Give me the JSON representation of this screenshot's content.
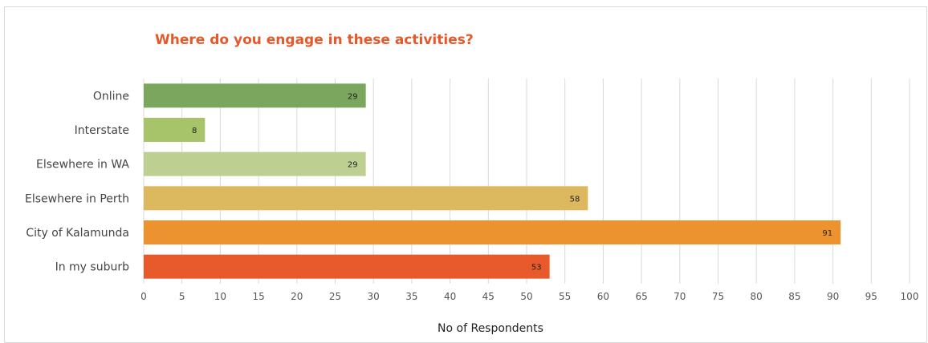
{
  "chart_data": {
    "type": "bar",
    "orientation": "horizontal",
    "title": "Where do you engage in these activities?",
    "xlabel": "No of Respondents",
    "ylabel": "",
    "xlim": [
      0,
      100
    ],
    "x_ticks": [
      0,
      5,
      10,
      15,
      20,
      25,
      30,
      35,
      40,
      45,
      50,
      55,
      60,
      65,
      70,
      75,
      80,
      85,
      90,
      95,
      100
    ],
    "grid": true,
    "legend": "none",
    "categories": [
      "Online",
      "Interstate",
      "Elsewhere in WA",
      "Elsewhere in Perth",
      "City of Kalamunda",
      "In my suburb"
    ],
    "values": [
      29,
      8,
      29,
      58,
      91,
      53
    ],
    "colors": [
      "#7ba65e",
      "#a7c46b",
      "#bdd092",
      "#dcb95e",
      "#ec922f",
      "#e85a2c"
    ],
    "title_color": "#e8572a"
  }
}
